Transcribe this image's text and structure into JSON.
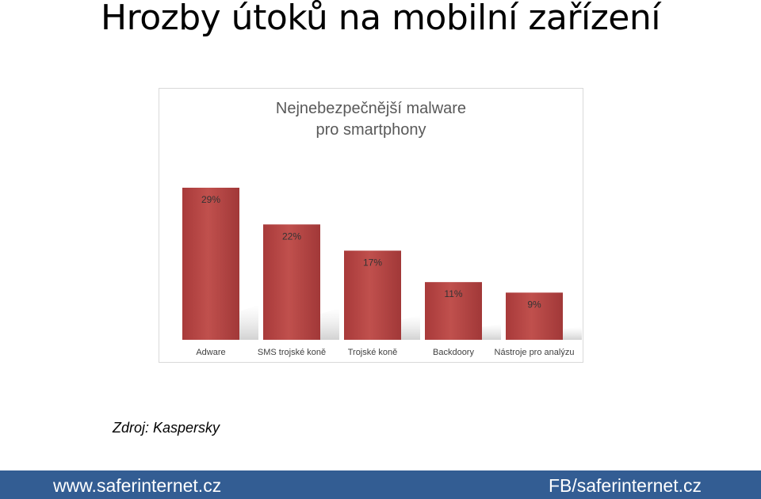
{
  "slide": {
    "title": "Hrozby útoků na mobilní zařízení",
    "source": "Zdroj: Kaspersky"
  },
  "footer": {
    "left": "www.saferinternet.cz",
    "right": "FB/saferinternet.cz",
    "color": "#335d93"
  },
  "chart_data": {
    "type": "bar",
    "title_lines": [
      "Nejnebezpečnější malware",
      "pro smartphony"
    ],
    "categories": [
      "Adware",
      "SMS trojské koně",
      "Trojské koně",
      "Backdoory",
      "Nástroje pro analýzu"
    ],
    "values": [
      29,
      22,
      17,
      11,
      9
    ],
    "data_labels": [
      "29%",
      "22%",
      "17%",
      "11%",
      "9%"
    ],
    "unit": "%",
    "ylim": [
      0,
      29
    ],
    "grid": false,
    "legend": "none",
    "bar_color": "#b94a4a"
  }
}
